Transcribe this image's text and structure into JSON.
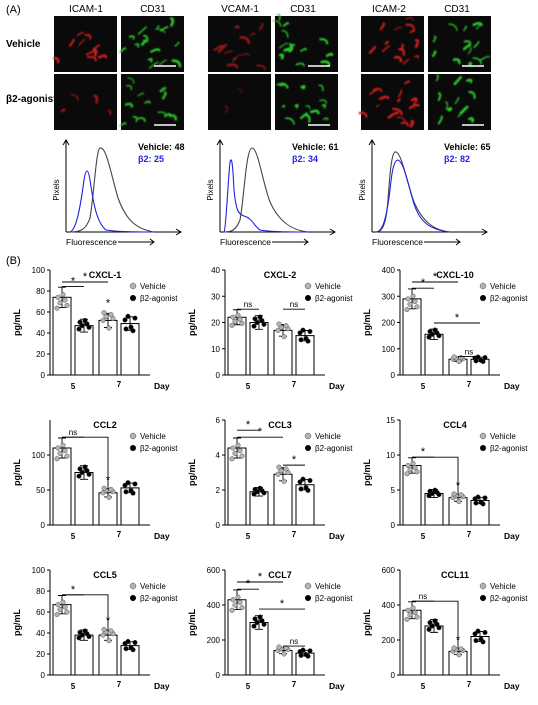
{
  "panel_a": {
    "label": "(A)",
    "row_labels": [
      "Vehicle",
      "β2-agonist"
    ],
    "groups": [
      {
        "stain": "ICAM-1",
        "counter": "CD31",
        "leg_vehicle": "Vehicle: 48",
        "leg_b2": "β2: 25"
      },
      {
        "stain": "VCAM-1",
        "counter": "CD31",
        "leg_vehicle": "Vehicle: 61",
        "leg_b2": "β2: 34"
      },
      {
        "stain": "ICAM-2",
        "counter": "CD31",
        "leg_vehicle": "Vehicle: 65",
        "leg_b2": "β2: 82"
      }
    ],
    "hist_ylabel": "Pixels",
    "hist_xlabel": "Fluorescence"
  },
  "panel_b": {
    "label": "(B)",
    "ylabel": "pg/mL",
    "xlabel": "Day",
    "legend": [
      "Vehicle",
      "β2-agonist"
    ],
    "sig": "*",
    "ns": "ns"
  },
  "colors": {
    "vehicle_dot": "#b3b3b3",
    "b2_dot": "#000000",
    "blue": "#1f1fe6",
    "grey": "#444444",
    "green": "#2cc82c",
    "red": "#e02020"
  },
  "chart_data": [
    {
      "type": "bar",
      "title": "CXCL-1",
      "categories": [
        "5",
        "7"
      ],
      "ylim": [
        0,
        100
      ],
      "yticks": [
        0,
        20,
        40,
        60,
        80,
        100
      ],
      "series": [
        {
          "name": "Vehicle",
          "values": [
            74,
            52
          ]
        },
        {
          "name": "β2-agonist",
          "values": [
            47,
            49
          ]
        }
      ]
    },
    {
      "type": "bar",
      "title": "CXCL-2",
      "categories": [
        "5",
        "7"
      ],
      "ylim": [
        0,
        40
      ],
      "yticks": [
        0,
        10,
        20,
        30,
        40
      ],
      "series": [
        {
          "name": "Vehicle",
          "values": [
            22,
            17
          ]
        },
        {
          "name": "β2-agonist",
          "values": [
            20,
            15
          ]
        }
      ]
    },
    {
      "type": "bar",
      "title": "CXCL-10",
      "categories": [
        "5",
        "7"
      ],
      "ylim": [
        0,
        400
      ],
      "yticks": [
        0,
        100,
        200,
        300,
        400
      ],
      "series": [
        {
          "name": "Vehicle",
          "values": [
            290,
            60
          ]
        },
        {
          "name": "β2-agonist",
          "values": [
            155,
            60
          ]
        }
      ]
    },
    {
      "type": "bar",
      "title": "CCL2",
      "categories": [
        "5",
        "7"
      ],
      "ylim": [
        0,
        150
      ],
      "yticks": [
        0,
        50,
        100
      ],
      "series": [
        {
          "name": "Vehicle",
          "values": [
            110,
            46
          ]
        },
        {
          "name": "β2-agonist",
          "values": [
            75,
            53
          ]
        }
      ]
    },
    {
      "type": "bar",
      "title": "CCL3",
      "categories": [
        "5",
        "7"
      ],
      "ylim": [
        0,
        6
      ],
      "yticks": [
        0,
        2,
        4,
        6
      ],
      "series": [
        {
          "name": "Vehicle",
          "values": [
            4.4,
            2.9
          ]
        },
        {
          "name": "β2-agonist",
          "values": [
            1.9,
            2.3
          ]
        }
      ]
    },
    {
      "type": "bar",
      "title": "CCL4",
      "categories": [
        "5",
        "7"
      ],
      "ylim": [
        0,
        15
      ],
      "yticks": [
        0,
        5,
        10,
        15
      ],
      "series": [
        {
          "name": "Vehicle",
          "values": [
            8.5,
            3.9
          ]
        },
        {
          "name": "β2-agonist",
          "values": [
            4.5,
            3.5
          ]
        }
      ]
    },
    {
      "type": "bar",
      "title": "CCL5",
      "categories": [
        "5",
        "7"
      ],
      "ylim": [
        0,
        100
      ],
      "yticks": [
        0,
        20,
        40,
        60,
        80,
        100
      ],
      "series": [
        {
          "name": "Vehicle",
          "values": [
            67,
            38
          ]
        },
        {
          "name": "β2-agonist",
          "values": [
            38,
            28
          ]
        }
      ]
    },
    {
      "type": "bar",
      "title": "CCL7",
      "categories": [
        "5",
        "7"
      ],
      "ylim": [
        0,
        600
      ],
      "yticks": [
        0,
        200,
        400,
        600
      ],
      "series": [
        {
          "name": "Vehicle",
          "values": [
            430,
            140
          ]
        },
        {
          "name": "β2-agonist",
          "values": [
            300,
            125
          ]
        }
      ]
    },
    {
      "type": "bar",
      "title": "CCL11",
      "categories": [
        "5",
        "7"
      ],
      "ylim": [
        0,
        600
      ],
      "yticks": [
        0,
        200,
        400,
        600
      ],
      "series": [
        {
          "name": "Vehicle",
          "values": [
            370,
            135
          ]
        },
        {
          "name": "β2-agonist",
          "values": [
            280,
            220
          ]
        }
      ]
    }
  ]
}
